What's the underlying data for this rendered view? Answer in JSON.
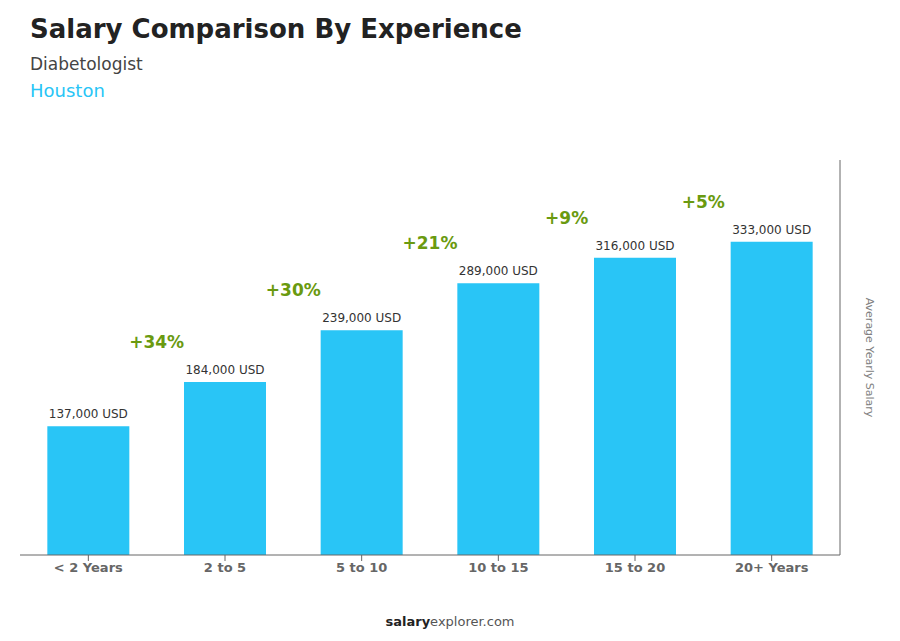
{
  "chart_data": {
    "type": "bar",
    "title": "Salary Comparison By Experience",
    "subtitle": "Diabetologist",
    "annotations": [
      "Houston",
      "salary",
      "explorer.com"
    ],
    "ylabel": "Average Yearly Salary",
    "categories": [
      "< 2 Years",
      "2 to 5",
      "5 to 10",
      "10 to 15",
      "15 to 20",
      "20+ Years"
    ],
    "values": [
      137000,
      184000,
      239000,
      289000,
      316000,
      333000
    ],
    "value_labels": [
      "137,000 USD",
      "184,000 USD",
      "239,000 USD",
      "289,000 USD",
      "316,000 USD",
      "333,000 USD"
    ],
    "data_labels": true,
    "change_labels": [
      "+34%",
      "+30%",
      "+21%",
      "+9%",
      "+5%"
    ],
    "color": "#29c5f6",
    "ylim": [
      0,
      420000
    ],
    "tick_labels": "x",
    "grid": false
  }
}
